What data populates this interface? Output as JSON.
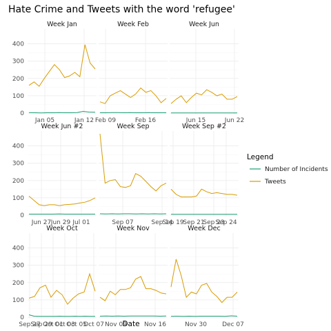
{
  "title": "Hate Crime and Tweets with the word 'refugee'",
  "xlabel": "Date",
  "legend": {
    "title": "Legend",
    "items": [
      {
        "label": "Number of Incidents",
        "color": "#1b9e77"
      },
      {
        "label": "Tweets",
        "color": "#d99b00"
      }
    ]
  },
  "chart_data": {
    "type": "line",
    "title": "Hate Crime and Tweets with the word 'refugee'",
    "xlabel": "Date",
    "ylabel": "",
    "ylim": [
      0,
      470
    ],
    "yticks": [
      0,
      100,
      200,
      300,
      400
    ],
    "grid": true,
    "legend_position": "right",
    "panels": [
      {
        "name": "Week Jan",
        "xticks": [
          "Jan 05",
          "Jan 12"
        ],
        "xtick_pos": [
          0.25,
          0.82
        ],
        "series": [
          {
            "name": "Number of Incidents",
            "values": [
              3,
              2,
              1,
              2,
              2,
              3,
              2,
              2,
              3,
              10,
              6,
              5
            ]
          },
          {
            "name": "Tweets",
            "values": [
              160,
              180,
              155,
              200,
              240,
              280,
              250,
              205,
              215,
              235,
              210,
              395,
              290,
              255
            ]
          }
        ]
      },
      {
        "name": "Week Feb",
        "xticks": [
          "Feb 09",
          "Feb 16"
        ],
        "xtick_pos": [
          0.1,
          0.68
        ],
        "series": [
          {
            "name": "Number of Incidents",
            "values": [
              2,
              2,
              3,
              3,
              2,
              3,
              2,
              2,
              3,
              2,
              2,
              2
            ]
          },
          {
            "name": "Tweets",
            "values": [
              65,
              55,
              100,
              115,
              130,
              110,
              90,
              110,
              145,
              120,
              130,
              100,
              60,
              85
            ]
          }
        ]
      },
      {
        "name": "Week Jun",
        "xticks": [
          "Jun 15",
          "Jun 22"
        ],
        "xtick_pos": [
          0.38,
          0.94
        ],
        "series": [
          {
            "name": "Number of Incidents",
            "values": [
              1,
              1,
              1,
              1,
              1,
              1,
              1,
              1,
              1,
              1,
              1,
              1
            ]
          },
          {
            "name": "Tweets",
            "values": [
              55,
              80,
              100,
              60,
              90,
              115,
              105,
              135,
              120,
              100,
              110,
              80,
              80,
              95
            ]
          }
        ]
      },
      {
        "name": "Week Jun #2",
        "xticks": [
          "Jun 27",
          "Jun 29",
          "Jul 01"
        ],
        "xtick_pos": [
          0.2,
          0.48,
          0.78
        ],
        "series": [
          {
            "name": "Number of Incidents",
            "values": [
              6,
              6,
              6,
              6,
              6,
              7,
              6,
              6,
              6,
              6,
              6,
              6
            ]
          },
          {
            "name": "Tweets",
            "values": [
              110,
              85,
              60,
              55,
              60,
              60,
              55,
              60,
              62,
              65,
              70,
              75,
              85,
              100
            ]
          }
        ]
      },
      {
        "name": "Week Sep",
        "xticks": [
          "Sep 07",
          "Sep 14"
        ],
        "xtick_pos": [
          0.35,
          0.92
        ],
        "series": [
          {
            "name": "Number of Incidents",
            "values": [
              8,
              7,
              8,
              7,
              8,
              8,
              7,
              8,
              7,
              8,
              7,
              8
            ]
          },
          {
            "name": "Tweets",
            "values": [
              470,
              185,
              200,
              205,
              165,
              160,
              170,
              240,
              225,
              195,
              165,
              140,
              170,
              185
            ]
          }
        ]
      },
      {
        "name": "Week Sep #2",
        "xticks": [
          "Sep 19",
          "Sep 21",
          "Sep 23",
          "Sep 24"
        ],
        "xtick_pos": [
          0.05,
          0.35,
          0.64,
          0.82
        ],
        "series": [
          {
            "name": "Number of Incidents",
            "values": [
              5,
              5,
              5,
              5,
              5,
              5,
              5,
              5,
              5,
              5,
              5,
              5
            ]
          },
          {
            "name": "Tweets",
            "values": [
              150,
              120,
              105,
              105,
              105,
              110,
              150,
              135,
              125,
              130,
              125,
              120,
              120,
              115
            ]
          }
        ]
      },
      {
        "name": "Week Oct",
        "xticks": [
          "Sep 27",
          "Sep 29",
          "Oct 01",
          "Oct 03",
          "Oct 05",
          "Oct 07"
        ],
        "xtick_pos": [
          0.03,
          0.2,
          0.37,
          0.54,
          0.71,
          0.96
        ],
        "series": [
          {
            "name": "Number of Incidents",
            "values": [
              14,
              6,
              5,
              5,
              5,
              5,
              6,
              5,
              5,
              6,
              5,
              6,
              5,
              5
            ]
          },
          {
            "name": "Tweets",
            "values": [
              110,
              120,
              170,
              185,
              115,
              155,
              130,
              75,
              110,
              135,
              145,
              250,
              150
            ]
          }
        ]
      },
      {
        "name": "Week Nov",
        "xticks": [
          "Nov 09",
          "Nov 16"
        ],
        "xtick_pos": [
          0.25,
          0.82
        ],
        "series": [
          {
            "name": "Number of Incidents",
            "values": [
              6,
              7,
              6,
              7,
              6,
              7,
              7,
              7,
              7,
              7,
              6,
              7
            ]
          },
          {
            "name": "Tweets",
            "values": [
              115,
              95,
              150,
              130,
              160,
              160,
              170,
              220,
              235,
              165,
              165,
              155,
              140,
              135
            ]
          }
        ]
      },
      {
        "name": "Week Dec",
        "xticks": [
          "Nov 30",
          "Dec 07"
        ],
        "xtick_pos": [
          0.38,
          0.92
        ],
        "series": [
          {
            "name": "Number of Incidents",
            "values": [
              5,
              6,
              5,
              6,
              5,
              6,
              6,
              6,
              6,
              5,
              8,
              6
            ]
          },
          {
            "name": "Tweets",
            "values": [
              175,
              335,
              240,
              115,
              145,
              135,
              185,
              195,
              145,
              120,
              85,
              115,
              115,
              145
            ]
          }
        ]
      }
    ]
  }
}
